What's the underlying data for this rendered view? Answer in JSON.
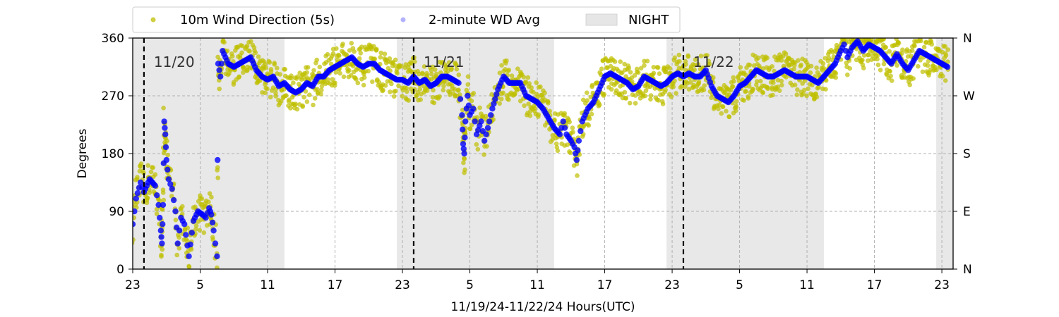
{
  "chart_data": {
    "type": "scatter",
    "xlabel": "11/19/24-11/22/24  Hours(UTC)",
    "ylabel": "Degrees",
    "x_range_hours": [
      0,
      73
    ],
    "x_ticks": [
      {
        "hour": 0,
        "label": "23"
      },
      {
        "hour": 6,
        "label": "5"
      },
      {
        "hour": 12,
        "label": "11"
      },
      {
        "hour": 18,
        "label": "17"
      },
      {
        "hour": 24,
        "label": "23"
      },
      {
        "hour": 30,
        "label": "5"
      },
      {
        "hour": 36,
        "label": "11"
      },
      {
        "hour": 42,
        "label": "17"
      },
      {
        "hour": 48,
        "label": "23"
      },
      {
        "hour": 54,
        "label": "5"
      },
      {
        "hour": 60,
        "label": "11"
      },
      {
        "hour": 66,
        "label": "17"
      },
      {
        "hour": 72,
        "label": "23"
      }
    ],
    "ylim": [
      0,
      360
    ],
    "y_ticks": [
      0,
      90,
      180,
      270,
      360
    ],
    "y2_ticks": [
      {
        "value": 0,
        "label": "N"
      },
      {
        "value": 90,
        "label": "E"
      },
      {
        "value": 180,
        "label": "S"
      },
      {
        "value": 270,
        "label": "W"
      },
      {
        "value": 360,
        "label": "N"
      }
    ],
    "grid": true,
    "legend_position": "top-left, above plot",
    "legend": [
      {
        "label": "10m Wind Direction (5s)",
        "color": "#bfbf00",
        "marker": "dot"
      },
      {
        "label": "2-minute WD Avg",
        "color": "#0000ff",
        "marker": "dot-faint"
      },
      {
        "label": "NIGHT",
        "color": "#e8e8e8",
        "marker": "box"
      }
    ],
    "night_periods_hours": [
      [
        0,
        13.5
      ],
      [
        23.5,
        37.5
      ],
      [
        47.5,
        61.5
      ],
      [
        71.5,
        73
      ]
    ],
    "day_boundaries": [
      {
        "hour": 1,
        "label": "11/20"
      },
      {
        "hour": 25,
        "label": "11/21"
      },
      {
        "hour": 49,
        "label": "11/22"
      }
    ],
    "series": [
      {
        "name": "2-minute WD Avg",
        "color": "#0000ff",
        "points": [
          [
            0,
            70
          ],
          [
            0.3,
            110
          ],
          [
            0.7,
            135
          ],
          [
            1,
            120
          ],
          [
            1.5,
            140
          ],
          [
            2,
            130
          ],
          [
            2.3,
            100
          ],
          [
            2.5,
            60
          ],
          [
            2.6,
            40
          ],
          [
            2.7,
            100
          ],
          [
            2.8,
            230
          ],
          [
            2.9,
            210
          ],
          [
            3,
            170
          ],
          [
            3.2,
            140
          ],
          [
            3.5,
            125
          ],
          [
            3.8,
            90
          ],
          [
            4,
            40
          ],
          [
            4.3,
            80
          ],
          [
            4.6,
            70
          ],
          [
            5,
            20
          ],
          [
            5.4,
            75
          ],
          [
            5.8,
            90
          ],
          [
            6.2,
            85
          ],
          [
            6.5,
            80
          ],
          [
            6.8,
            95
          ],
          [
            7,
            85
          ],
          [
            7.2,
            60
          ],
          [
            7.5,
            20
          ],
          [
            7.6,
            320
          ],
          [
            7.8,
            300
          ],
          [
            8,
            340
          ],
          [
            8.5,
            320
          ],
          [
            9,
            315
          ],
          [
            9.5,
            320
          ],
          [
            10,
            325
          ],
          [
            10.5,
            330
          ],
          [
            11,
            310
          ],
          [
            11.5,
            300
          ],
          [
            12,
            295
          ],
          [
            12.5,
            300
          ],
          [
            13,
            285
          ],
          [
            13.5,
            290
          ],
          [
            14,
            280
          ],
          [
            14.5,
            275
          ],
          [
            15,
            280
          ],
          [
            15.5,
            290
          ],
          [
            16,
            285
          ],
          [
            16.5,
            300
          ],
          [
            17,
            300
          ],
          [
            17.5,
            310
          ],
          [
            18,
            315
          ],
          [
            18.5,
            320
          ],
          [
            19,
            325
          ],
          [
            19.5,
            330
          ],
          [
            20,
            320
          ],
          [
            20.5,
            315
          ],
          [
            21,
            320
          ],
          [
            21.5,
            320
          ],
          [
            22,
            310
          ],
          [
            22.5,
            305
          ],
          [
            23,
            300
          ],
          [
            23.5,
            295
          ],
          [
            24,
            295
          ],
          [
            24.5,
            290
          ],
          [
            25,
            300
          ],
          [
            25.5,
            290
          ],
          [
            26,
            295
          ],
          [
            26.5,
            285
          ],
          [
            27,
            290
          ],
          [
            27.5,
            300
          ],
          [
            28,
            300
          ],
          [
            28.5,
            295
          ],
          [
            29,
            290
          ],
          [
            29.3,
            240
          ],
          [
            29.4,
            195
          ],
          [
            29.5,
            180
          ],
          [
            29.6,
            230
          ],
          [
            29.8,
            270
          ],
          [
            30,
            240
          ],
          [
            30.3,
            250
          ],
          [
            30.6,
            210
          ],
          [
            31,
            230
          ],
          [
            31.3,
            200
          ],
          [
            31.6,
            220
          ],
          [
            32,
            250
          ],
          [
            32.5,
            280
          ],
          [
            33,
            300
          ],
          [
            33.5,
            290
          ],
          [
            34,
            290
          ],
          [
            34.5,
            290
          ],
          [
            35,
            270
          ],
          [
            35.5,
            265
          ],
          [
            36,
            260
          ],
          [
            36.5,
            250
          ],
          [
            37,
            235
          ],
          [
            37.5,
            220
          ],
          [
            38,
            210
          ],
          [
            38.3,
            230
          ],
          [
            38.6,
            210
          ],
          [
            39,
            200
          ],
          [
            39.3,
            190
          ],
          [
            39.5,
            170
          ],
          [
            39.7,
            200
          ],
          [
            40,
            230
          ],
          [
            40.5,
            250
          ],
          [
            41,
            260
          ],
          [
            41.5,
            280
          ],
          [
            42,
            300
          ],
          [
            42.5,
            305
          ],
          [
            43,
            300
          ],
          [
            43.5,
            295
          ],
          [
            44,
            290
          ],
          [
            44.5,
            280
          ],
          [
            45,
            285
          ],
          [
            45.5,
            300
          ],
          [
            46,
            295
          ],
          [
            46.5,
            290
          ],
          [
            47,
            285
          ],
          [
            47.5,
            290
          ],
          [
            48,
            300
          ],
          [
            48.5,
            305
          ],
          [
            49,
            300
          ],
          [
            49.5,
            305
          ],
          [
            50,
            300
          ],
          [
            50.5,
            300
          ],
          [
            51,
            310
          ],
          [
            51.5,
            285
          ],
          [
            52,
            270
          ],
          [
            52.5,
            265
          ],
          [
            53,
            260
          ],
          [
            53.5,
            270
          ],
          [
            54,
            285
          ],
          [
            54.5,
            290
          ],
          [
            55,
            300
          ],
          [
            55.5,
            310
          ],
          [
            56,
            305
          ],
          [
            56.5,
            300
          ],
          [
            57,
            300
          ],
          [
            57.5,
            305
          ],
          [
            58,
            310
          ],
          [
            58.5,
            305
          ],
          [
            59,
            300
          ],
          [
            59.5,
            300
          ],
          [
            60,
            300
          ],
          [
            60.5,
            295
          ],
          [
            61,
            290
          ],
          [
            61.5,
            300
          ],
          [
            62,
            310
          ],
          [
            62.5,
            320
          ],
          [
            63,
            340
          ],
          [
            63.3,
            350
          ],
          [
            63.6,
            330
          ],
          [
            64,
            345
          ],
          [
            64.5,
            355
          ],
          [
            65,
            340
          ],
          [
            65.5,
            350
          ],
          [
            66,
            345
          ],
          [
            66.5,
            340
          ],
          [
            67,
            330
          ],
          [
            67.5,
            320
          ],
          [
            68,
            335
          ],
          [
            68.5,
            320
          ],
          [
            69,
            310
          ],
          [
            69.5,
            325
          ],
          [
            70,
            340
          ],
          [
            70.5,
            335
          ],
          [
            71,
            330
          ],
          [
            71.5,
            325
          ],
          [
            72,
            320
          ],
          [
            72.5,
            315
          ]
        ]
      }
    ]
  }
}
